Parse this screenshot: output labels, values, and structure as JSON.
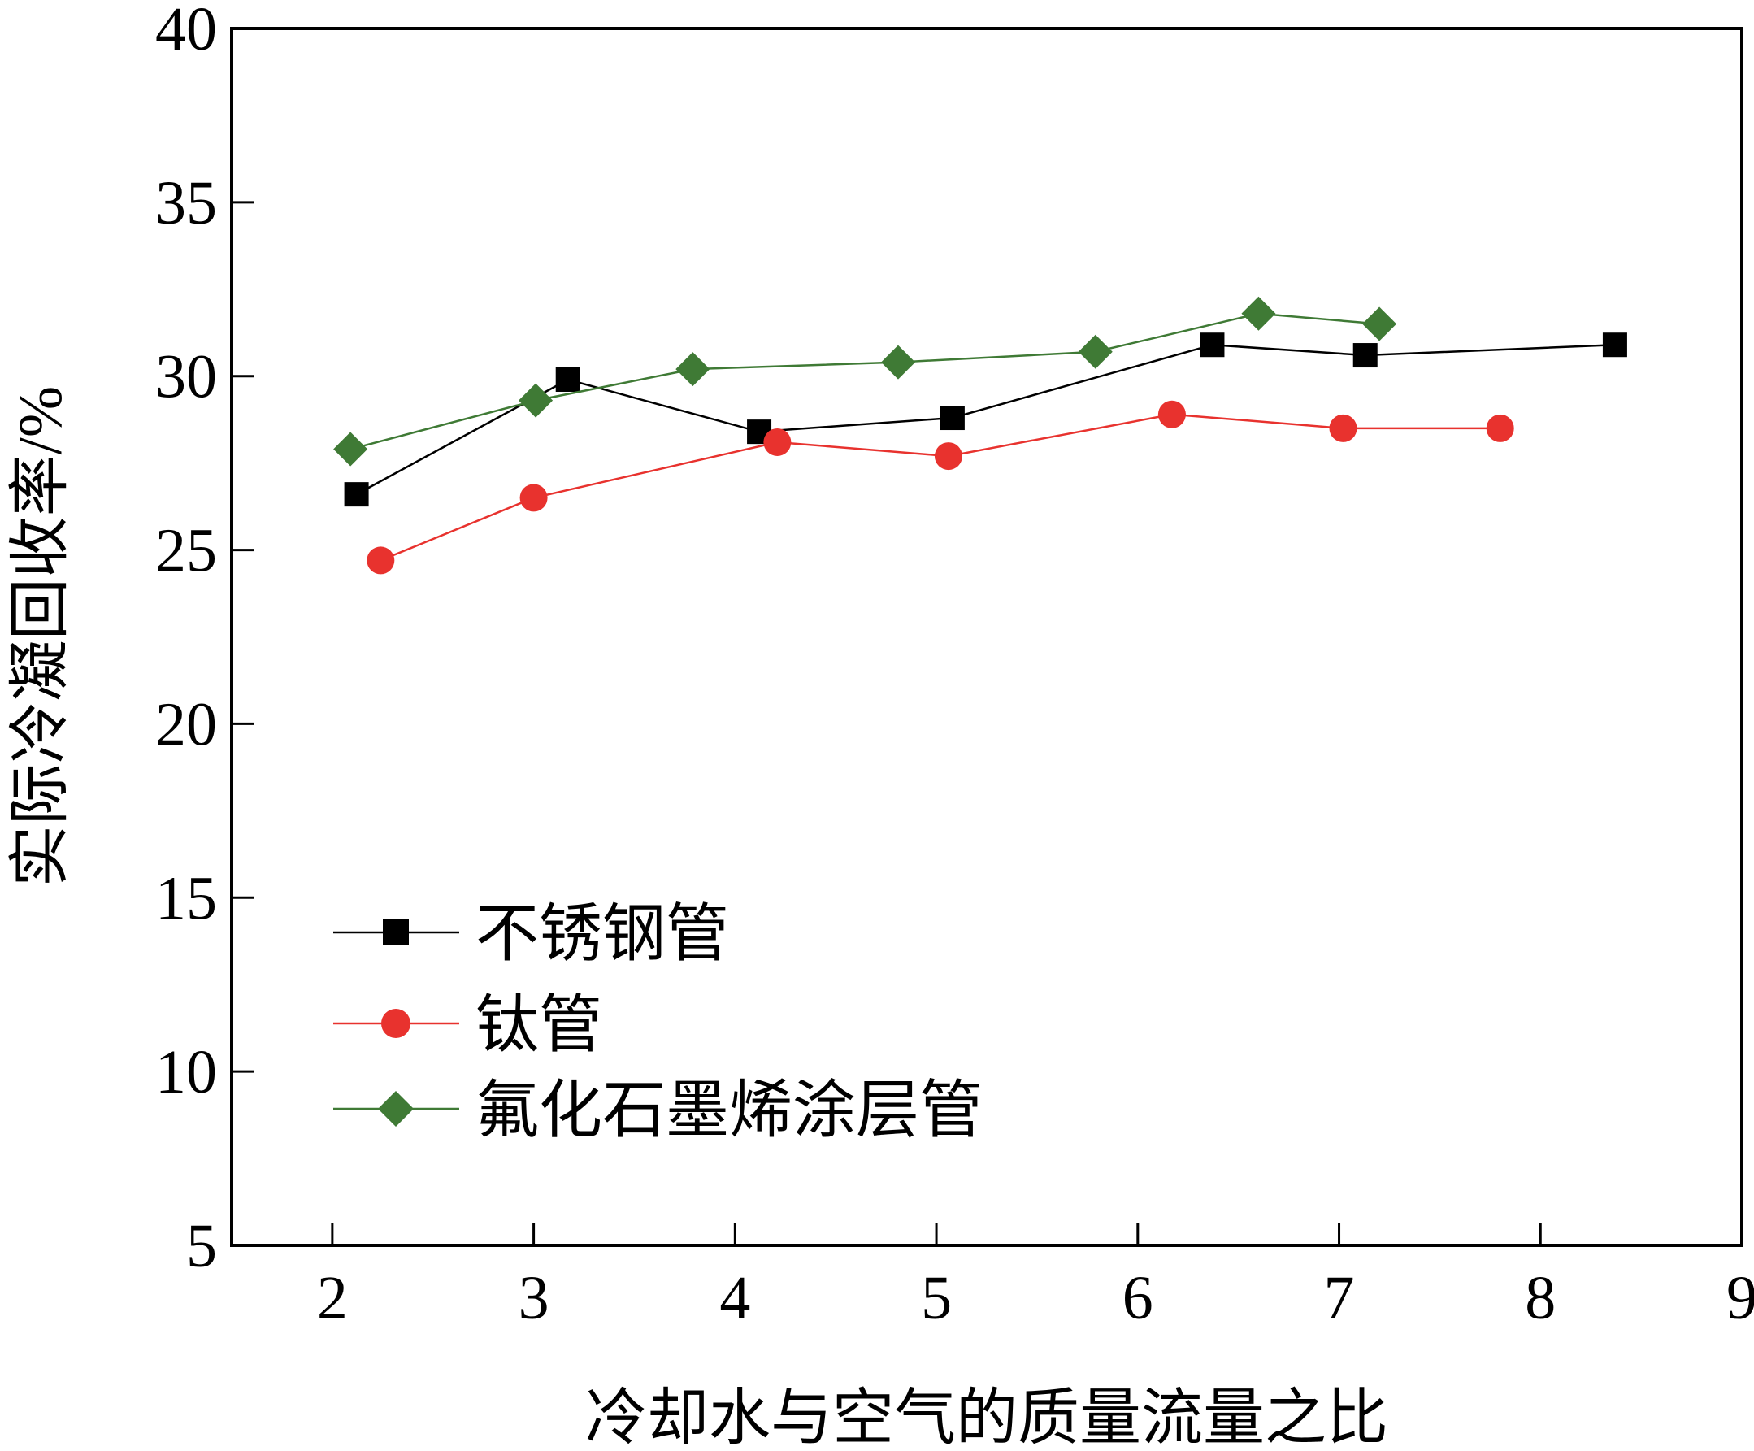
{
  "chart_data": {
    "type": "line",
    "title": "",
    "xlabel": "冷却水与空气的质量流量之比",
    "ylabel": "实际冷凝回收率/%",
    "xlim": [
      1.5,
      9
    ],
    "ylim": [
      5,
      40
    ],
    "xticks": [
      2,
      3,
      4,
      5,
      6,
      7,
      8,
      9
    ],
    "yticks": [
      5,
      10,
      15,
      20,
      25,
      30,
      35,
      40
    ],
    "x_tick_labels": [
      "2",
      "3",
      "4",
      "5",
      "6",
      "7",
      "8",
      "9"
    ],
    "y_tick_labels": [
      "5",
      "10",
      "15",
      "20",
      "25",
      "30",
      "35",
      "40"
    ],
    "grid": false,
    "legend_position": "lower-left",
    "series": [
      {
        "name": "不锈钢管",
        "color": "#000000",
        "marker": "square",
        "x": [
          2.12,
          3.17,
          4.12,
          5.08,
          6.37,
          7.13,
          8.37
        ],
        "y": [
          26.6,
          29.9,
          28.4,
          28.8,
          30.9,
          30.6,
          30.9
        ]
      },
      {
        "name": "钛管",
        "color": "#e8322e",
        "marker": "circle",
        "x": [
          2.24,
          3.0,
          4.21,
          5.06,
          6.17,
          7.02,
          7.8
        ],
        "y": [
          24.7,
          26.5,
          28.1,
          27.7,
          28.9,
          28.5,
          28.5
        ]
      },
      {
        "name": "氟化石墨烯涂层管",
        "color": "#3f7a35",
        "marker": "diamond",
        "x": [
          2.09,
          3.01,
          3.79,
          4.81,
          5.79,
          6.6,
          7.2
        ],
        "y": [
          27.9,
          29.3,
          30.2,
          30.4,
          30.7,
          31.8,
          31.5
        ]
      }
    ]
  }
}
